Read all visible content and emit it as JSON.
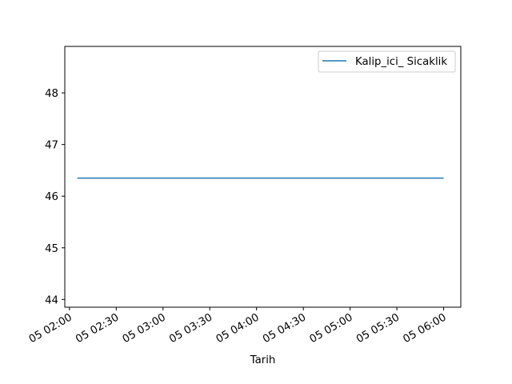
{
  "chart_data": {
    "type": "line",
    "title": "",
    "xlabel": "Tarih",
    "ylabel": "",
    "x_tick_labels": [
      "05 02:00",
      "05 02:30",
      "05 03:00",
      "05 03:30",
      "05 04:00",
      "05 04:30",
      "05 05:00",
      "05 05:30",
      "05 06:00"
    ],
    "x_ticks": [
      "02:00",
      "02:30",
      "03:00",
      "03:30",
      "04:00",
      "04:30",
      "05:00",
      "05:30",
      "06:00"
    ],
    "xlim": [
      "01:57",
      "06:11"
    ],
    "y_ticks": [
      44,
      45,
      46,
      47,
      48
    ],
    "ylim": [
      43.85,
      48.9
    ],
    "grid": false,
    "legend_position": "upper right",
    "series": [
      {
        "name": "Kalip_ici_ Sicaklik",
        "color": "#1f77b4",
        "x": [
          "02:05",
          "06:00"
        ],
        "y": [
          46.35,
          46.35
        ]
      }
    ]
  }
}
